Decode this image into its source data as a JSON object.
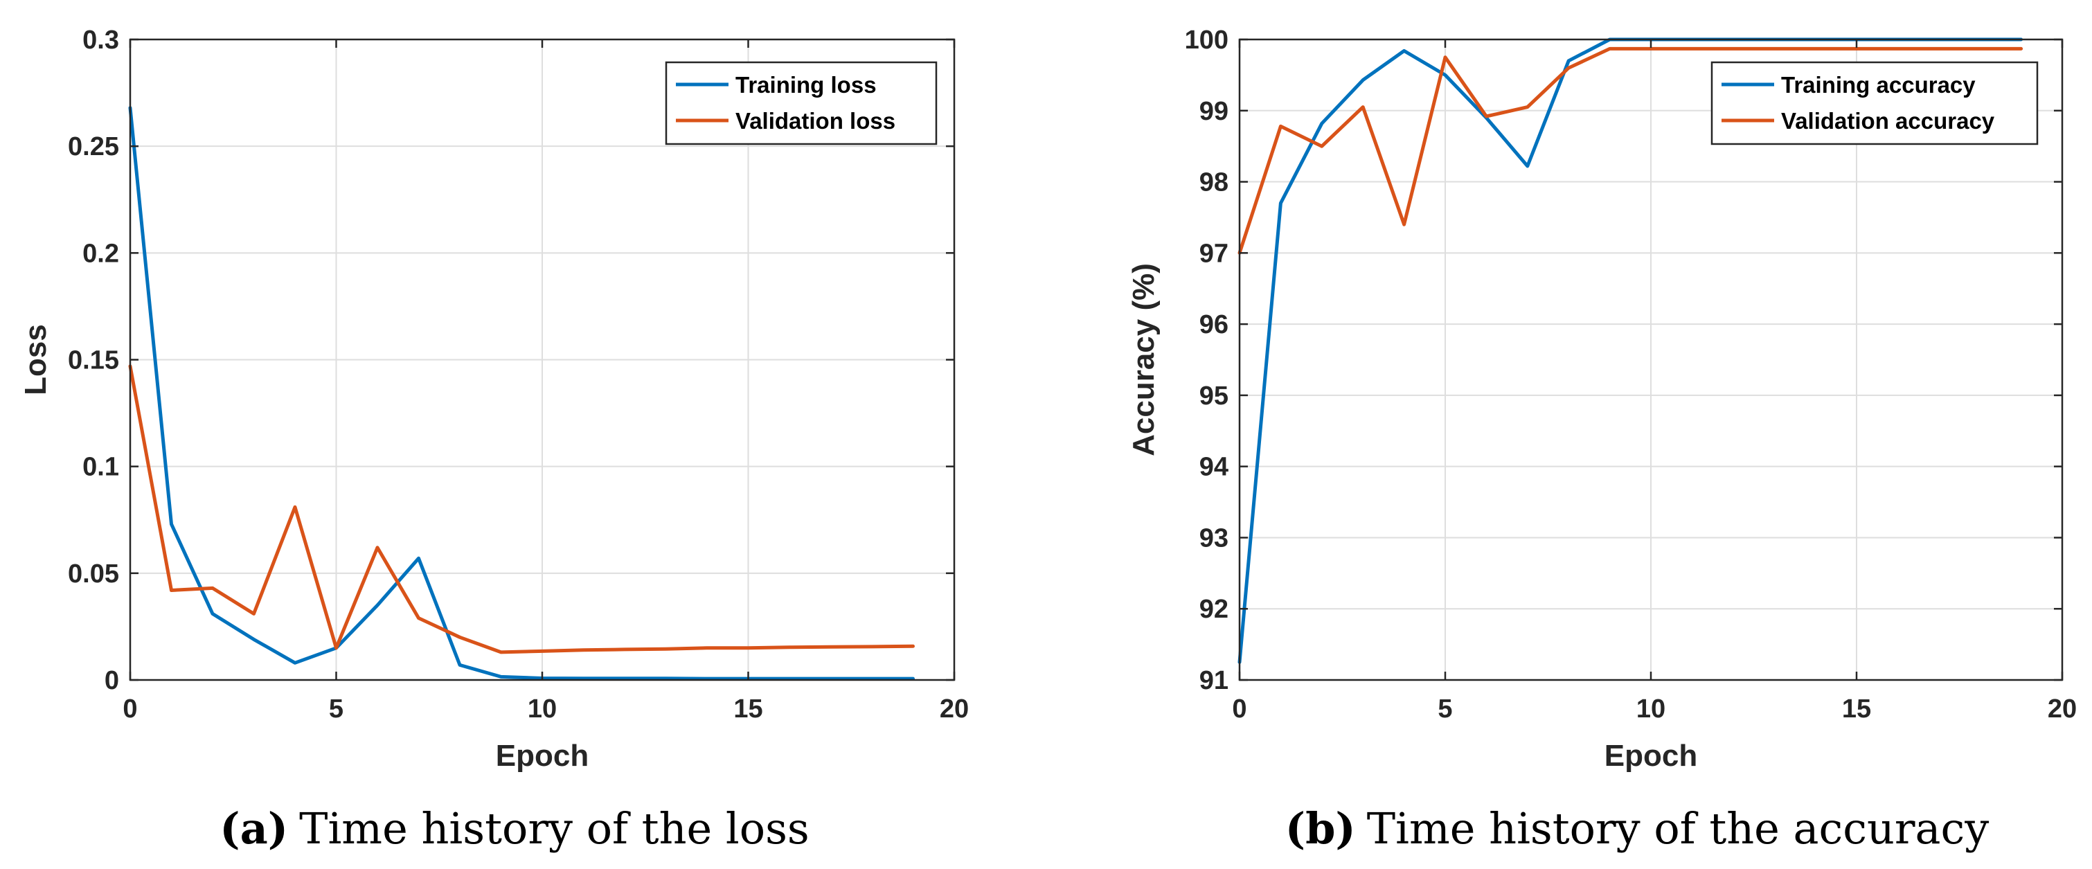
{
  "chart_data": [
    {
      "type": "line",
      "caption_letter": "(a)",
      "caption_text": "Time history of the loss",
      "xlabel": "Epoch",
      "ylabel": "Loss",
      "xlim": [
        0,
        20
      ],
      "ylim": [
        0,
        0.3
      ],
      "xticks": [
        0,
        5,
        10,
        15,
        20
      ],
      "yticks": [
        0,
        0.05,
        0.1,
        0.15,
        0.2,
        0.25,
        0.3
      ],
      "ytick_labels": [
        "0",
        "0.05",
        "0.1",
        "0.15",
        "0.2",
        "0.25",
        "0.3"
      ],
      "grid": true,
      "legend_position": "top-right",
      "x": [
        0,
        1,
        2,
        3,
        4,
        5,
        6,
        7,
        8,
        9,
        10,
        11,
        12,
        13,
        14,
        15,
        16,
        17,
        18,
        19
      ],
      "series": [
        {
          "name": "Training loss",
          "color": "#0072BD",
          "values": [
            0.268,
            0.073,
            0.031,
            0.019,
            0.008,
            0.015,
            0.035,
            0.057,
            0.007,
            0.0015,
            0.0008,
            0.0007,
            0.0007,
            0.0007,
            0.0006,
            0.0006,
            0.0006,
            0.0006,
            0.0006,
            0.0006
          ]
        },
        {
          "name": "Validation loss",
          "color": "#D95319",
          "values": [
            0.147,
            0.042,
            0.043,
            0.031,
            0.081,
            0.015,
            0.062,
            0.029,
            0.02,
            0.013,
            0.0135,
            0.014,
            0.0143,
            0.0145,
            0.015,
            0.015,
            0.0153,
            0.0155,
            0.0156,
            0.0158
          ]
        }
      ]
    },
    {
      "type": "line",
      "caption_letter": "(b)",
      "caption_text": "Time history of the accuracy",
      "xlabel": "Epoch",
      "ylabel": "Accuracy (%)",
      "xlim": [
        0,
        20
      ],
      "ylim": [
        91,
        100
      ],
      "xticks": [
        0,
        5,
        10,
        15,
        20
      ],
      "yticks": [
        91,
        92,
        93,
        94,
        95,
        96,
        97,
        98,
        99,
        100
      ],
      "ytick_labels": [
        "91",
        "92",
        "93",
        "94",
        "95",
        "96",
        "97",
        "98",
        "99",
        "100"
      ],
      "grid": true,
      "legend_position": "top-right",
      "x": [
        0,
        1,
        2,
        3,
        4,
        5,
        6,
        7,
        8,
        9,
        10,
        11,
        12,
        13,
        14,
        15,
        16,
        17,
        18,
        19
      ],
      "series": [
        {
          "name": "Training accuracy",
          "color": "#0072BD",
          "values": [
            91.25,
            97.7,
            98.82,
            99.43,
            99.84,
            99.5,
            98.9,
            98.22,
            99.7,
            100,
            100,
            100,
            100,
            100,
            100,
            100,
            100,
            100,
            100,
            100
          ]
        },
        {
          "name": "Validation accuracy",
          "color": "#D95319",
          "values": [
            97.0,
            98.78,
            98.5,
            99.05,
            97.4,
            99.75,
            98.92,
            99.05,
            99.6,
            99.87,
            99.87,
            99.87,
            99.87,
            99.87,
            99.87,
            99.87,
            99.87,
            99.87,
            99.87,
            99.87
          ]
        }
      ]
    }
  ]
}
